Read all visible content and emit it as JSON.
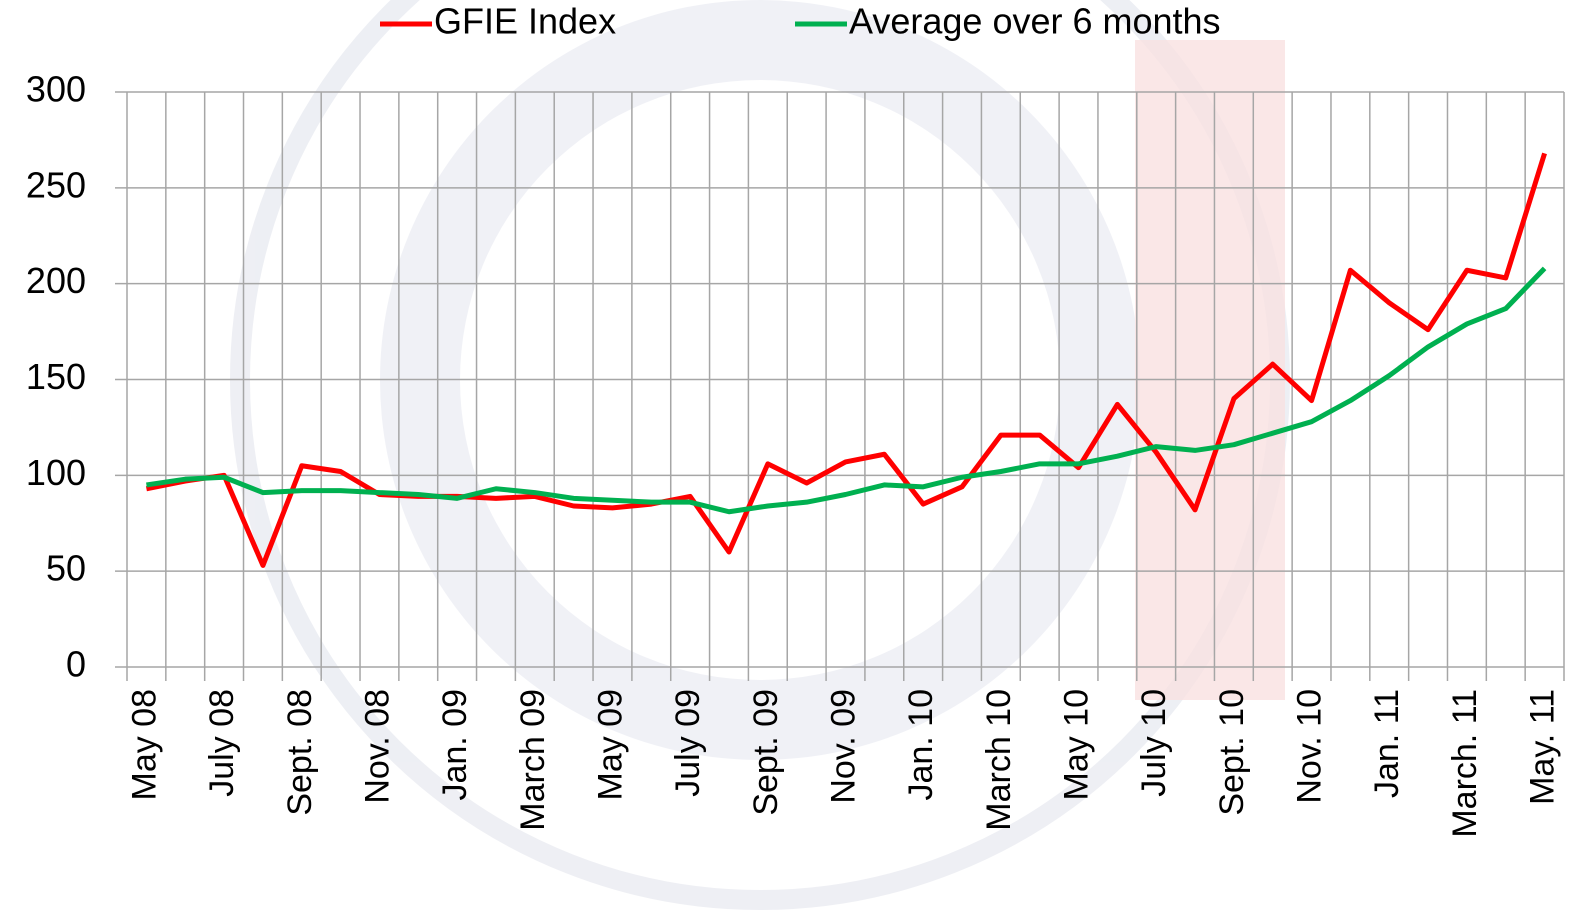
{
  "chart_data": {
    "type": "line",
    "categories": [
      "May 08",
      null,
      "July 08",
      null,
      "Sept. 08",
      null,
      "Nov. 08",
      null,
      "Jan. 09",
      null,
      "March 09",
      null,
      "May 09",
      null,
      "July 09",
      null,
      "Sept. 09",
      null,
      "Nov. 09",
      null,
      "Jan. 10",
      null,
      "March 10",
      null,
      "May 10",
      null,
      "July 10",
      null,
      "Sept. 10",
      null,
      "Nov. 10",
      null,
      "Jan. 11",
      null,
      "March. 11",
      null,
      "May. 11"
    ],
    "series": [
      {
        "name": "GFIE Index",
        "color": "#ff0000",
        "values": [
          93,
          97,
          100,
          53,
          105,
          102,
          90,
          89,
          89,
          88,
          89,
          84,
          83,
          85,
          89,
          60,
          106,
          96,
          107,
          111,
          85,
          94,
          121,
          121,
          104,
          137,
          112,
          82,
          140,
          158,
          139,
          207,
          190,
          176,
          207,
          203,
          268
        ]
      },
      {
        "name": "Average over 6 months",
        "color": "#00b050",
        "values": [
          95,
          98,
          99,
          91,
          92,
          92,
          91,
          90,
          88,
          93,
          91,
          88,
          87,
          86,
          86,
          81,
          84,
          86,
          90,
          95,
          94,
          99,
          102,
          106,
          106,
          110,
          115,
          113,
          116,
          122,
          128,
          139,
          152,
          167,
          179,
          187,
          208
        ]
      }
    ],
    "ylim": [
      0,
      300
    ],
    "yticks": [
      0,
      50,
      100,
      150,
      200,
      250,
      300
    ],
    "grid": true,
    "legend": "top"
  }
}
